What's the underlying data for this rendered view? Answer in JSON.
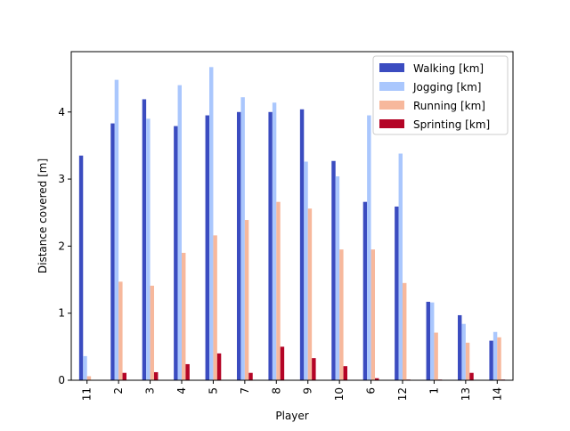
{
  "chart_data": {
    "type": "bar",
    "title": "",
    "xlabel": "Player",
    "ylabel": "Distance covered [m]",
    "categories": [
      "11",
      "2",
      "3",
      "4",
      "5",
      "7",
      "8",
      "9",
      "10",
      "6",
      "12",
      "1",
      "13",
      "14"
    ],
    "ylim": [
      0,
      4.9
    ],
    "yticks": [
      0,
      1,
      2,
      3,
      4
    ],
    "grid": false,
    "legend_position": "top-right",
    "series": [
      {
        "name": "Walking [km]",
        "color": "#3b4cc0",
        "values": [
          3.35,
          3.83,
          4.19,
          3.79,
          3.95,
          4.0,
          4.0,
          4.04,
          3.27,
          2.66,
          2.59,
          1.17,
          0.97,
          0.59
        ]
      },
      {
        "name": "Jogging [km]",
        "color": "#aac7fd",
        "values": [
          0.36,
          4.48,
          3.9,
          4.4,
          4.67,
          4.22,
          4.14,
          3.26,
          3.04,
          3.95,
          3.38,
          1.16,
          0.84,
          0.72
        ]
      },
      {
        "name": "Running [km]",
        "color": "#f7b89c",
        "values": [
          0.06,
          1.47,
          1.41,
          1.9,
          2.16,
          2.39,
          2.66,
          2.56,
          1.95,
          1.95,
          1.45,
          0.71,
          0.56,
          0.64
        ]
      },
      {
        "name": "Sprinting [km]",
        "color": "#b40426",
        "values": [
          0.0,
          0.11,
          0.12,
          0.24,
          0.4,
          0.11,
          0.5,
          0.33,
          0.21,
          0.03,
          0.01,
          0.01,
          0.11,
          0.01
        ]
      }
    ]
  }
}
